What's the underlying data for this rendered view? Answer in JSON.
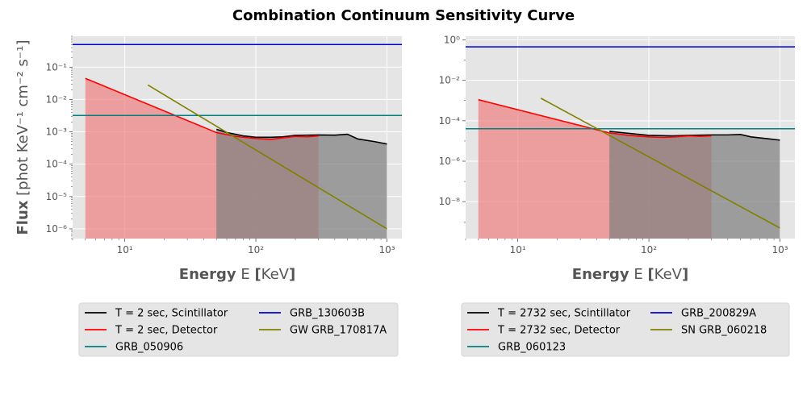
{
  "figure_title": "Combination Continuum Sensitivity Curve",
  "chart_data": [
    {
      "type": "line",
      "xscale": "log",
      "yscale": "log",
      "xlabel_bold": "Energy",
      "xlabel_rest": "E",
      "xlabel_bold2": "[",
      "xlabel_unit": "KeV",
      "xlabel_bold3": "]",
      "ylabel_bold": "Flux",
      "ylabel_unit": "[phot KeV⁻¹ cm⁻² s⁻¹]",
      "xlim": [
        4,
        1300
      ],
      "ylim": [
        5e-07,
        0.9
      ],
      "xticks": [
        10,
        100,
        1000
      ],
      "xtick_labels": [
        "10¹",
        "10²",
        "10³"
      ],
      "yticks": [
        1e-06,
        1e-05,
        0.0001,
        0.001,
        0.01,
        0.1
      ],
      "ytick_labels": [
        "10⁻⁶",
        "10⁻⁵",
        "10⁻⁴",
        "10⁻³",
        "10⁻²",
        "10⁻¹"
      ],
      "grid": true,
      "legend_position": "bottom",
      "series": [
        {
          "name": "T = 2 sec, Scintillator",
          "color": "#000000",
          "fill": "#808080",
          "x": [
            50,
            60,
            80,
            100,
            130,
            160,
            200,
            300,
            400,
            500,
            600,
            800,
            1000
          ],
          "y": [
            0.0012,
            0.00095,
            0.00075,
            0.00068,
            0.00068,
            0.0007,
            0.00078,
            0.0008,
            0.00079,
            0.00084,
            0.0006,
            0.0005,
            0.00042
          ]
        },
        {
          "name": "T = 2 sec, Detector",
          "color": "#ff0000",
          "fill": "#f08080",
          "x": [
            5,
            50,
            70,
            100,
            130,
            160,
            200,
            250,
            300
          ],
          "y": [
            0.045,
            0.00095,
            0.00072,
            0.00062,
            0.00058,
            0.00065,
            0.00072,
            0.0007,
            0.00075
          ]
        },
        {
          "name": "GRB_050906",
          "color": "#008080",
          "hline": 0.0032
        },
        {
          "name": "GRB_130603B",
          "color": "#0000cc",
          "hline": 0.5
        },
        {
          "name": "GW GRB_170817A",
          "color": "#808000",
          "x": [
            15,
            1000
          ],
          "y": [
            0.028,
            1e-06
          ]
        }
      ]
    },
    {
      "type": "line",
      "xscale": "log",
      "yscale": "log",
      "xlabel_bold": "Energy",
      "xlabel_rest": "E",
      "xlabel_bold2": "[",
      "xlabel_unit": "KeV",
      "xlabel_bold3": "]",
      "xlim": [
        4,
        1300
      ],
      "ylim": [
        1.5e-10,
        1.5
      ],
      "xticks": [
        10,
        100,
        1000
      ],
      "xtick_labels": [
        "10¹",
        "10²",
        "10³"
      ],
      "yticks": [
        1e-08,
        1e-06,
        0.0001,
        0.01,
        1
      ],
      "ytick_labels": [
        "10⁻⁸",
        "10⁻⁶",
        "10⁻⁴",
        "10⁻²",
        "10⁰"
      ],
      "grid": true,
      "legend_position": "bottom",
      "series": [
        {
          "name": "T = 2732 sec, Scintillator",
          "color": "#000000",
          "fill": "#808080",
          "x": [
            50,
            70,
            100,
            150,
            200,
            300,
            400,
            500,
            600,
            800,
            1000
          ],
          "y": [
            3e-05,
            2.4e-05,
            1.9e-05,
            1.8e-05,
            1.9e-05,
            2e-05,
            2e-05,
            2.1e-05,
            1.6e-05,
            1.3e-05,
            1.1e-05
          ]
        },
        {
          "name": "T = 2732 sec, Detector",
          "color": "#ff0000",
          "fill": "#f08080",
          "x": [
            5,
            50,
            70,
            100,
            130,
            160,
            200,
            250,
            300
          ],
          "y": [
            0.0011,
            2.5e-05,
            1.9e-05,
            1.6e-05,
            1.5e-05,
            1.6e-05,
            1.8e-05,
            1.7e-05,
            1.8e-05
          ]
        },
        {
          "name": "GRB_060123",
          "color": "#008080",
          "hline": 4e-05
        },
        {
          "name": "GRB_200829A",
          "color": "#0000cc",
          "hline": 0.45
        },
        {
          "name": "SN GRB_060218",
          "color": "#808000",
          "x": [
            15,
            1000
          ],
          "y": [
            0.0013,
            5e-10
          ]
        }
      ]
    }
  ]
}
